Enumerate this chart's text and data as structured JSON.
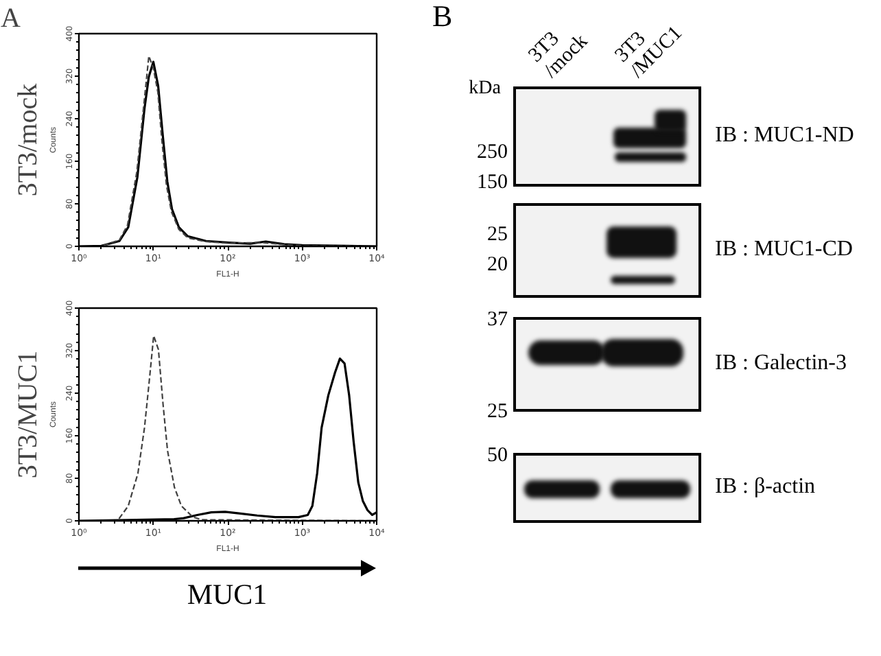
{
  "chart_data": [
    {
      "type": "line",
      "title": "3T3/mock",
      "xlabel": "FL1-H",
      "ylabel": "Counts",
      "annotations": [
        "A"
      ],
      "log": "x",
      "xlim": [
        1,
        10000
      ],
      "ylim": [
        0,
        400
      ],
      "xticks": [
        {
          "value": 1,
          "label": "10⁰"
        },
        {
          "value": 10,
          "label": "10¹"
        },
        {
          "value": 100,
          "label": "10²"
        },
        {
          "value": 1000,
          "label": "10³"
        },
        {
          "value": 10000,
          "label": "10⁴"
        }
      ],
      "yticks": [
        0,
        80,
        160,
        240,
        320,
        400
      ],
      "series": [
        {
          "color": "#000000",
          "line_style": "solid",
          "x": [
            1,
            2,
            3.5,
            4.6,
            6.1,
            7.6,
            8.7,
            10,
            11.6,
            13.4,
            15.4,
            17.8,
            22,
            29,
            51,
            105,
            200,
            324,
            573,
            1000,
            10000
          ],
          "values": [
            0,
            1,
            10,
            36,
            130,
            259,
            319,
            347,
            302,
            208,
            122,
            70,
            36,
            19,
            10,
            7,
            5,
            9,
            4,
            2,
            0
          ]
        },
        {
          "color": "#404040",
          "line_style": "dashed",
          "x": [
            1,
            2,
            3.5,
            4.5,
            6,
            7.5,
            8.7,
            10,
            11.5,
            13,
            15,
            17.5,
            22,
            29,
            50,
            100,
            300,
            600,
            1000,
            10000
          ],
          "values": [
            0,
            0,
            12,
            40,
            140,
            270,
            358,
            335,
            290,
            200,
            115,
            65,
            32,
            16,
            9,
            6,
            7,
            3,
            1,
            0
          ]
        }
      ]
    },
    {
      "type": "line",
      "title": "3T3/MUC1",
      "xlabel": "FL1-H",
      "ylabel": "Counts",
      "annotations": [
        "MUC1"
      ],
      "log": "x",
      "xlim": [
        1,
        10000
      ],
      "ylim": [
        0,
        400
      ],
      "xticks": [
        {
          "value": 1,
          "label": "10⁰"
        },
        {
          "value": 10,
          "label": "10¹"
        },
        {
          "value": 100,
          "label": "10²"
        },
        {
          "value": 1000,
          "label": "10³"
        },
        {
          "value": 10000,
          "label": "10⁴"
        }
      ],
      "yticks": [
        0,
        80,
        160,
        240,
        320,
        400
      ],
      "series": [
        {
          "color": "#000000",
          "line_style": "solid",
          "x": [
            1,
            19,
            25.5,
            39,
            60,
            92,
            141,
            248,
            437,
            891,
            1186,
            1368,
            1585,
            1820,
            2240,
            2760,
            3206,
            3700,
            4266,
            4900,
            5660,
            6530,
            7530,
            8700,
            10000
          ],
          "values": [
            0,
            3,
            5,
            11,
            16,
            17,
            14,
            10,
            7,
            7,
            11,
            28,
            89,
            175,
            236,
            279,
            305,
            296,
            236,
            149,
            72,
            37,
            20,
            11,
            16
          ]
        },
        {
          "color": "#404040",
          "line_style": "dashed",
          "x": [
            1,
            3.3,
            4.6,
            6.2,
            7.6,
            8.8,
            10.1,
            11.7,
            13.5,
            15.5,
            19.2,
            23.8,
            34,
            45,
            10000
          ],
          "values": [
            0,
            0,
            28,
            89,
            175,
            262,
            348,
            322,
            219,
            132,
            63,
            28,
            7,
            2,
            0
          ]
        }
      ]
    },
    {
      "type": "other",
      "annotations": [
        "B",
        "kDa",
        "250",
        "150",
        "25",
        "20",
        "37",
        "25",
        "50"
      ],
      "categories": [
        "3T3 /mock",
        "3T3 /MUC1"
      ],
      "y_categories": [
        "IB : MUC1-ND",
        "IB : MUC1-CD",
        "IB : Galectin-3",
        "IB : β-actin"
      ]
    }
  ]
}
